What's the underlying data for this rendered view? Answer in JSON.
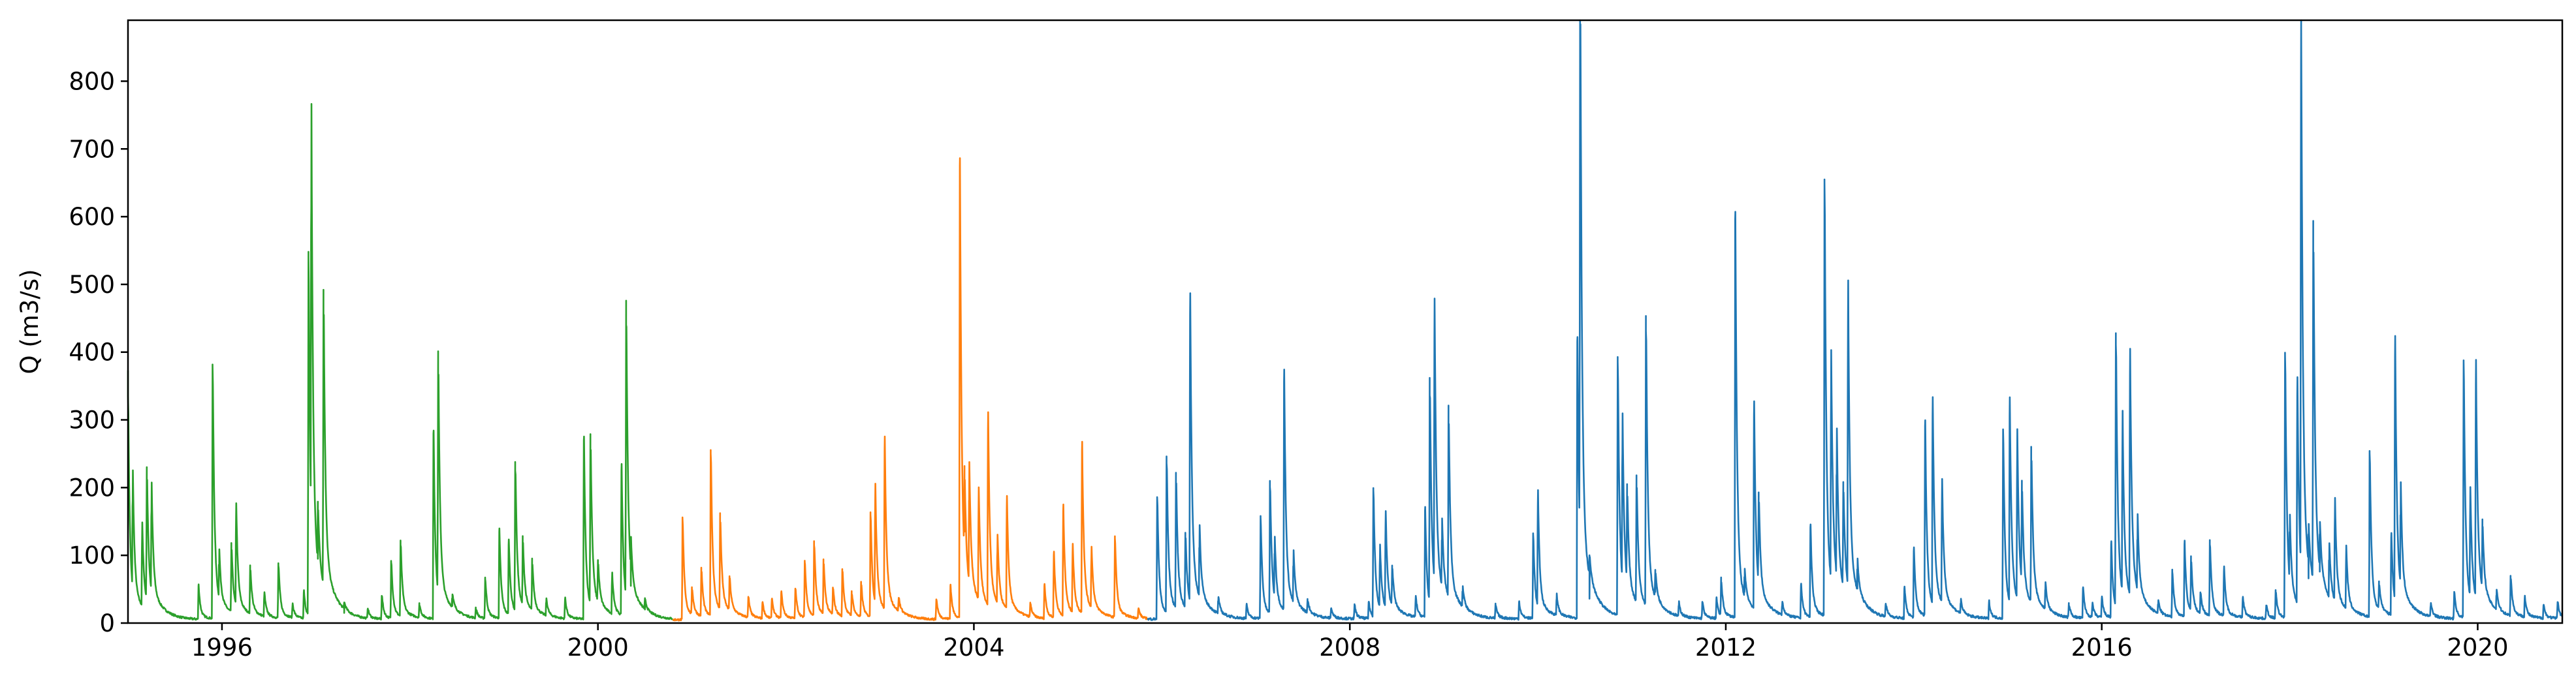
{
  "chart_data": {
    "type": "line",
    "title": "",
    "xlabel": "",
    "ylabel": "Q (m3/s)",
    "xlim": [
      1995.0,
      2020.9
    ],
    "ylim": [
      0,
      890
    ],
    "grid": false,
    "x_ticks": [
      {
        "value": 1996,
        "label": "1996"
      },
      {
        "value": 2000,
        "label": "2000"
      },
      {
        "value": 2004,
        "label": "2004"
      },
      {
        "value": 2008,
        "label": "2008"
      },
      {
        "value": 2012,
        "label": "2012"
      },
      {
        "value": 2016,
        "label": "2016"
      },
      {
        "value": 2020,
        "label": "2020"
      }
    ],
    "y_ticks": [
      {
        "value": 0,
        "label": "0"
      },
      {
        "value": 100,
        "label": "100"
      },
      {
        "value": 200,
        "label": "200"
      },
      {
        "value": 300,
        "label": "300"
      },
      {
        "value": 400,
        "label": "400"
      },
      {
        "value": 500,
        "label": "500"
      },
      {
        "value": 600,
        "label": "600"
      },
      {
        "value": 700,
        "label": "700"
      },
      {
        "value": 800,
        "label": "800"
      }
    ],
    "series": [
      {
        "color": "#2ca02c",
        "x_start": 1995.0,
        "x_end": 2000.8,
        "base": 5,
        "peaks": [
          [
            1995.0,
            330
          ],
          [
            1995.05,
            175
          ],
          [
            1995.15,
            120
          ],
          [
            1995.2,
            195
          ],
          [
            1995.25,
            160
          ],
          [
            1995.75,
            50
          ],
          [
            1995.9,
            375
          ],
          [
            1995.97,
            70
          ],
          [
            1996.1,
            100
          ],
          [
            1996.15,
            150
          ],
          [
            1996.3,
            70
          ],
          [
            1996.45,
            35
          ],
          [
            1996.6,
            80
          ],
          [
            1996.75,
            20
          ],
          [
            1996.87,
            40
          ],
          [
            1996.92,
            535
          ],
          [
            1996.95,
            610
          ],
          [
            1997.02,
            90
          ],
          [
            1997.08,
            435
          ],
          [
            1997.3,
            10
          ],
          [
            1997.55,
            15
          ],
          [
            1997.7,
            35
          ],
          [
            1997.8,
            85
          ],
          [
            1997.9,
            110
          ],
          [
            1998.1,
            20
          ],
          [
            1998.25,
            275
          ],
          [
            1998.3,
            355
          ],
          [
            1998.45,
            20
          ],
          [
            1998.7,
            15
          ],
          [
            1998.8,
            60
          ],
          [
            1998.95,
            130
          ],
          [
            1999.05,
            110
          ],
          [
            1999.12,
            220
          ],
          [
            1999.2,
            100
          ],
          [
            1999.3,
            75
          ],
          [
            1999.45,
            25
          ],
          [
            1999.65,
            30
          ],
          [
            1999.85,
            265
          ],
          [
            1999.92,
            250
          ],
          [
            2000.0,
            60
          ],
          [
            2000.15,
            60
          ],
          [
            2000.25,
            220
          ],
          [
            2000.3,
            435
          ],
          [
            2000.35,
            50
          ],
          [
            2000.5,
            15
          ]
        ]
      },
      {
        "color": "#ff7f0e",
        "x_start": 2000.8,
        "x_end": 2005.85,
        "base": 5,
        "peaks": [
          [
            2000.9,
            150
          ],
          [
            2001.0,
            40
          ],
          [
            2001.1,
            70
          ],
          [
            2001.2,
            245
          ],
          [
            2001.3,
            140
          ],
          [
            2001.4,
            50
          ],
          [
            2001.6,
            30
          ],
          [
            2001.75,
            25
          ],
          [
            2001.85,
            30
          ],
          [
            2001.95,
            40
          ],
          [
            2002.1,
            45
          ],
          [
            2002.2,
            85
          ],
          [
            2002.3,
            110
          ],
          [
            2002.4,
            80
          ],
          [
            2002.5,
            40
          ],
          [
            2002.6,
            70
          ],
          [
            2002.7,
            35
          ],
          [
            2002.8,
            50
          ],
          [
            2002.9,
            155
          ],
          [
            2002.95,
            175
          ],
          [
            2003.05,
            250
          ],
          [
            2003.2,
            20
          ],
          [
            2003.6,
            30
          ],
          [
            2003.75,
            50
          ],
          [
            2003.85,
            670
          ],
          [
            2003.9,
            130
          ],
          [
            2003.95,
            175
          ],
          [
            2004.05,
            165
          ],
          [
            2004.15,
            280
          ],
          [
            2004.25,
            100
          ],
          [
            2004.35,
            165
          ],
          [
            2004.6,
            20
          ],
          [
            2004.75,
            50
          ],
          [
            2004.85,
            95
          ],
          [
            2004.95,
            160
          ],
          [
            2005.05,
            100
          ],
          [
            2005.15,
            250
          ],
          [
            2005.25,
            90
          ],
          [
            2005.5,
            120
          ],
          [
            2005.75,
            15
          ]
        ]
      },
      {
        "color": "#1f77b4",
        "x_start": 2005.85,
        "x_end": 2020.9,
        "base": 6,
        "peaks": [
          [
            2005.95,
            180
          ],
          [
            2006.05,
            230
          ],
          [
            2006.15,
            200
          ],
          [
            2006.25,
            110
          ],
          [
            2006.3,
            450
          ],
          [
            2006.4,
            105
          ],
          [
            2006.6,
            25
          ],
          [
            2006.9,
            20
          ],
          [
            2007.05,
            150
          ],
          [
            2007.15,
            195
          ],
          [
            2007.2,
            90
          ],
          [
            2007.3,
            350
          ],
          [
            2007.4,
            75
          ],
          [
            2007.55,
            20
          ],
          [
            2007.8,
            15
          ],
          [
            2008.05,
            20
          ],
          [
            2008.2,
            25
          ],
          [
            2008.25,
            190
          ],
          [
            2008.32,
            90
          ],
          [
            2008.38,
            140
          ],
          [
            2008.45,
            60
          ],
          [
            2008.7,
            30
          ],
          [
            2008.8,
            160
          ],
          [
            2008.85,
            330
          ],
          [
            2008.9,
            415
          ],
          [
            2008.98,
            100
          ],
          [
            2009.05,
            280
          ],
          [
            2009.2,
            30
          ],
          [
            2009.55,
            20
          ],
          [
            2009.8,
            25
          ],
          [
            2009.95,
            125
          ],
          [
            2010.0,
            170
          ],
          [
            2010.2,
            30
          ],
          [
            2010.42,
            410
          ],
          [
            2010.45,
            850
          ],
          [
            2010.55,
            30
          ],
          [
            2010.85,
            380
          ],
          [
            2010.9,
            245
          ],
          [
            2010.95,
            140
          ],
          [
            2011.05,
            185
          ],
          [
            2011.15,
            425
          ],
          [
            2011.25,
            40
          ],
          [
            2011.5,
            20
          ],
          [
            2011.75,
            25
          ],
          [
            2011.9,
            30
          ],
          [
            2011.95,
            55
          ],
          [
            2012.1,
            590
          ],
          [
            2012.2,
            40
          ],
          [
            2012.3,
            300
          ],
          [
            2012.35,
            135
          ],
          [
            2012.6,
            20
          ],
          [
            2012.8,
            50
          ],
          [
            2012.9,
            135
          ],
          [
            2013.05,
            645
          ],
          [
            2013.12,
            335
          ],
          [
            2013.18,
            215
          ],
          [
            2013.25,
            155
          ],
          [
            2013.3,
            445
          ],
          [
            2013.4,
            45
          ],
          [
            2013.7,
            20
          ],
          [
            2013.9,
            45
          ],
          [
            2014.0,
            100
          ],
          [
            2014.12,
            285
          ],
          [
            2014.2,
            300
          ],
          [
            2014.3,
            180
          ],
          [
            2014.5,
            20
          ],
          [
            2014.8,
            25
          ],
          [
            2014.95,
            280
          ],
          [
            2015.02,
            300
          ],
          [
            2015.1,
            245
          ],
          [
            2015.15,
            150
          ],
          [
            2015.25,
            230
          ],
          [
            2015.4,
            40
          ],
          [
            2015.65,
            20
          ],
          [
            2015.8,
            45
          ],
          [
            2015.9,
            20
          ],
          [
            2016.0,
            30
          ],
          [
            2016.1,
            110
          ],
          [
            2016.15,
            405
          ],
          [
            2016.22,
            265
          ],
          [
            2016.3,
            360
          ],
          [
            2016.38,
            110
          ],
          [
            2016.6,
            20
          ],
          [
            2016.75,
            70
          ],
          [
            2016.88,
            110
          ],
          [
            2016.95,
            80
          ],
          [
            2017.05,
            30
          ],
          [
            2017.15,
            110
          ],
          [
            2017.3,
            70
          ],
          [
            2017.5,
            30
          ],
          [
            2017.75,
            20
          ],
          [
            2017.85,
            40
          ],
          [
            2017.95,
            390
          ],
          [
            2018.0,
            100
          ],
          [
            2018.08,
            330
          ],
          [
            2018.12,
            820
          ],
          [
            2018.2,
            60
          ],
          [
            2018.25,
            530
          ],
          [
            2018.32,
            70
          ],
          [
            2018.42,
            80
          ],
          [
            2018.48,
            150
          ],
          [
            2018.6,
            90
          ],
          [
            2018.85,
            245
          ],
          [
            2018.95,
            40
          ],
          [
            2019.08,
            120
          ],
          [
            2019.12,
            385
          ],
          [
            2019.18,
            150
          ],
          [
            2019.5,
            20
          ],
          [
            2019.75,
            40
          ],
          [
            2019.85,
            380
          ],
          [
            2019.92,
            160
          ],
          [
            2019.98,
            345
          ],
          [
            2020.05,
            100
          ],
          [
            2020.2,
            30
          ],
          [
            2020.35,
            60
          ],
          [
            2020.5,
            30
          ],
          [
            2020.7,
            20
          ],
          [
            2020.85,
            25
          ]
        ]
      }
    ]
  }
}
